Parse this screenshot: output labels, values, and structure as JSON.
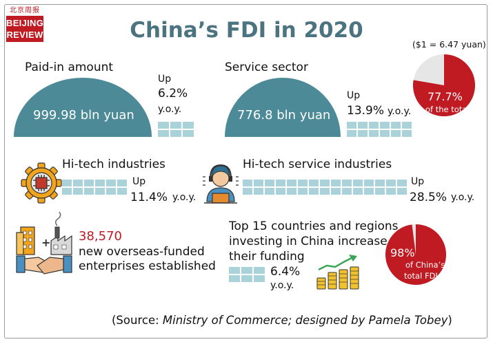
{
  "logo": {
    "chinese": "北京周报",
    "line1": "BEIJING",
    "line2": "REVIEW"
  },
  "title": "China’s FDI in 2020",
  "exchange_rate": "($1 = 6.47 yuan)",
  "colors": {
    "teal": "#4b8a96",
    "light_teal": "#a9d3d8",
    "red": "#c01a22",
    "gray": "#e6e6e6"
  },
  "chart_data": [
    {
      "type": "area",
      "label": "Paid-in amount",
      "value_text": "999.98 bln yuan",
      "value": 999.98,
      "unit": "bln yuan",
      "growth_prefix": "Up",
      "growth_value": "6.2%",
      "growth_suffix": "y.o.y.",
      "growth": 6.2
    },
    {
      "type": "area",
      "label": "Service sector",
      "value_text": "776.8 bln yuan",
      "value": 776.8,
      "unit": "bln yuan",
      "growth_prefix": "Up",
      "growth_value": "13.9%",
      "growth_suffix": "y.o.y.",
      "growth": 13.9
    },
    {
      "type": "pie",
      "slice_value_text": "77.7%",
      "slice_label": "of the total",
      "value": 77.7
    },
    {
      "type": "bar",
      "label": "Hi-tech industries",
      "growth_prefix": "Up",
      "growth_value": "11.4%",
      "growth_suffix": "y.o.y.",
      "growth": 11.4
    },
    {
      "type": "bar",
      "label": "Hi-tech service industries",
      "growth_prefix": "Up",
      "growth_value": "28.5%",
      "growth_suffix": "y.o.y.",
      "growth": 28.5
    },
    {
      "type": "table",
      "value_text": "38,570",
      "value": 38570,
      "text_line1": "new overseas-funded",
      "text_line2": "enterprises established"
    },
    {
      "type": "bar",
      "label_line1": "Top 15 countries and regions",
      "label_line2": "investing in China increase",
      "label_line3": "their funding",
      "growth_value": "6.4%",
      "growth_suffix": "y.o.y.",
      "growth": 6.4
    },
    {
      "type": "pie",
      "slice_value_text": "98%",
      "slice_line1": "of China’s",
      "slice_line2": "total FDI",
      "value": 98
    }
  ],
  "source": {
    "prefix": "(Source: ",
    "italic": "Ministry of Commerce; designed by Pamela Tobey",
    "suffix": ")"
  }
}
